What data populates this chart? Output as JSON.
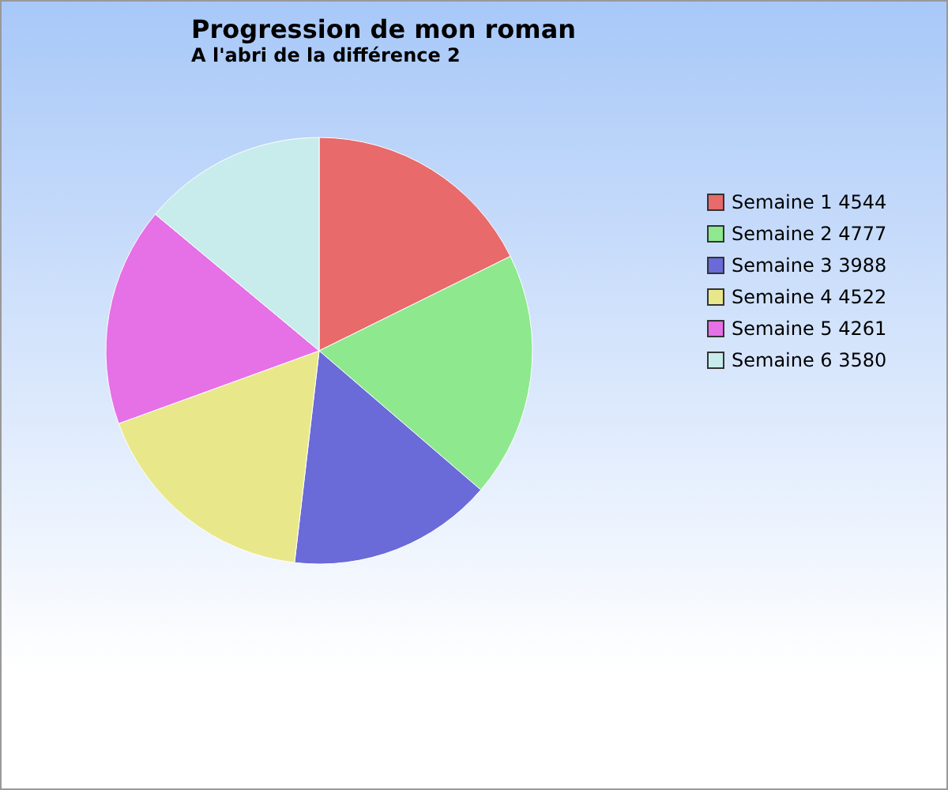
{
  "chart_data": {
    "type": "pie",
    "title": "Progression de mon roman",
    "subtitle": "A l'abri de la différence 2",
    "categories": [
      "Semaine 1 4544",
      "Semaine 2 4777",
      "Semaine 3 3988",
      "Semaine 4 4522",
      "Semaine 5 4261",
      "Semaine 6 3580"
    ],
    "values": [
      4544,
      4777,
      3988,
      4522,
      4261,
      3580
    ],
    "colors": [
      "#e86a6a",
      "#8ee88e",
      "#6a6ad8",
      "#e8e88a",
      "#e670e6",
      "#c8ecec"
    ],
    "legend": "top right"
  }
}
